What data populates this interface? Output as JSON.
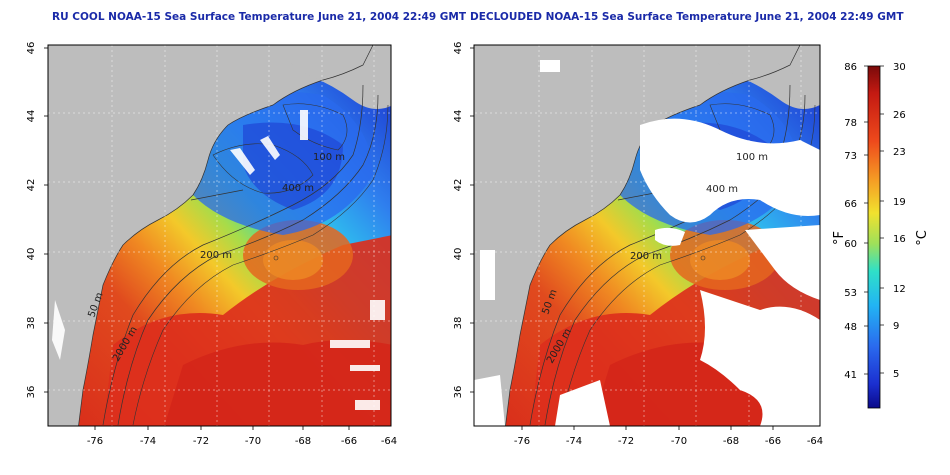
{
  "titles": {
    "left": "RU COOL NOAA-15 Sea Surface Temperature June 21, 2004 22:49 GMT",
    "right": "DECLOUDED NOAA-15 Sea Surface Temperature June 21, 2004 22:49 GMT"
  },
  "axes": {
    "x_ticks": [
      "-76",
      "-74",
      "-72",
      "-70",
      "-68",
      "-66",
      "-64"
    ],
    "y_ticks": [
      "36",
      "38",
      "40",
      "42",
      "44",
      "46"
    ]
  },
  "contour_labels": [
    "100 m",
    "400 m",
    "200 m",
    "50 m",
    "2000 m",
    "50 m"
  ],
  "colorbar": {
    "f_unit": "°F",
    "c_unit": "°C",
    "f_ticks": [
      "86",
      "78",
      "73",
      "66",
      "60",
      "53",
      "48",
      "41"
    ],
    "c_ticks": [
      "30",
      "26",
      "23",
      "19",
      "16",
      "12",
      "9",
      "5"
    ]
  },
  "colors": {
    "land": "#bdbdbd",
    "title": "#1a2aa8",
    "warm": "#d42a1c",
    "cold": "#2255dd"
  }
}
